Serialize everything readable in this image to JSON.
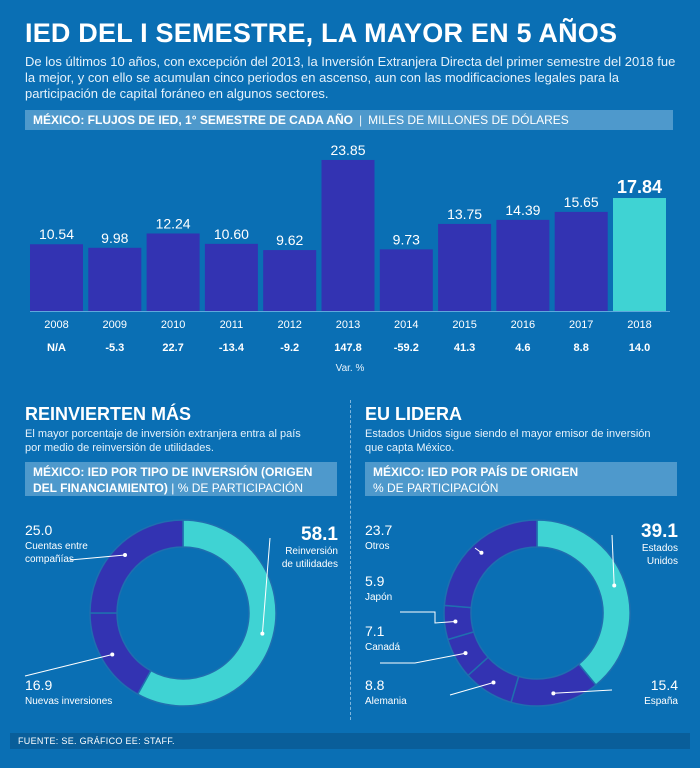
{
  "title": "IED DEL I SEMESTRE, LA MAYOR EN 5 AÑOS",
  "intro": "De los últimos 10 años, con excepción del 2013, la Inversión Extranjera Directa del primer semestre del 2018 fue la mejor, y con ello se acumulan cinco periodos en ascenso, aun con las modificaciones legales para la participación de capital foráneo en algunos sectores.",
  "bar_section": {
    "header_bold": "MÉXICO: FLUJOS DE IED, 1° SEMESTRE DE CADA AÑO",
    "separator": "|",
    "header_unit": "MILES DE MILLONES DE DÓLARES"
  },
  "left_section": {
    "title": "REINVIERTEN MÁS",
    "desc_lines": [
      "El mayor porcentaje de inversión extranjera entra al país",
      "por medio de reinversión de utilidades."
    ],
    "header_line1": "MÉXICO: IED POR TIPO DE INVERSIÓN (ORIGEN",
    "header_line2_bold": "DEL FINANCIAMIENTO)",
    "separator": "|",
    "header_line2_unit": "% DE PARTICIPACIÓN"
  },
  "right_section": {
    "title": "EU LIDERA",
    "desc_lines": [
      "Estados Unidos sigue siendo el mayor emisor de inversión",
      "que capta México."
    ],
    "header_line1": "MÉXICO: IED POR PAÍS DE ORIGEN",
    "header_line2_unit": "% DE PARTICIPACIÓN"
  },
  "footer": "FUENTE: SE. GRÁFICO EE: STAFF.",
  "colors": {
    "background": "#0a6fb4",
    "bar": "#3333b2",
    "bar_highlight": "#3fd3d3",
    "donut_light": "#3fd3d3",
    "donut_dark": "#3333b2",
    "header_strip": "#4e99cc"
  },
  "chart_data": [
    {
      "type": "bar",
      "title": "MÉXICO: FLUJOS DE IED, 1° SEMESTRE DE CADA AÑO",
      "ylabel": "MILES DE MILLONES DE DÓLARES",
      "categories": [
        "2008",
        "2009",
        "2010",
        "2011",
        "2012",
        "2013",
        "2014",
        "2015",
        "2016",
        "2017",
        "2018"
      ],
      "values": [
        10.54,
        9.98,
        12.24,
        10.6,
        9.62,
        23.85,
        9.73,
        13.75,
        14.39,
        15.65,
        17.84
      ],
      "value_labels": [
        "10.54",
        "9.98",
        "12.24",
        "10.60",
        "9.62",
        "23.85",
        "9.73",
        "13.75",
        "14.39",
        "15.65",
        "17.84"
      ],
      "var_labels": [
        "N/A",
        "-5.3",
        "22.7",
        "-13.4",
        "-9.2",
        "147.8",
        "-59.2",
        "41.3",
        "4.6",
        "8.8",
        "14.0"
      ],
      "var_caption": "Var. %",
      "highlight": "2018",
      "ylim": [
        0,
        24
      ]
    },
    {
      "type": "pie",
      "title": "MÉXICO: IED POR TIPO DE INVERSIÓN (ORIGEN DEL FINANCIAMIENTO)",
      "unit": "% DE PARTICIPACIÓN",
      "slices": [
        {
          "label": "Reinversión de utilidades",
          "value": 58.1,
          "value_label": "58.1",
          "lines": [
            "Reinversión",
            "de utilidades"
          ]
        },
        {
          "label": "Nuevas inversiones",
          "value": 16.9,
          "value_label": "16.9",
          "lines": [
            "Nuevas inversiones"
          ]
        },
        {
          "label": "Cuentas entre compañías",
          "value": 25.0,
          "value_label": "25.0",
          "lines": [
            "Cuentas entre",
            "compañías"
          ]
        }
      ]
    },
    {
      "type": "pie",
      "title": "MÉXICO: IED POR PAÍS DE ORIGEN",
      "unit": "% DE PARTICIPACIÓN",
      "slices": [
        {
          "label": "Estados Unidos",
          "value": 39.1,
          "value_label": "39.1",
          "lines": [
            "Estados",
            "Unidos"
          ]
        },
        {
          "label": "España",
          "value": 15.4,
          "value_label": "15.4",
          "lines": [
            "España"
          ]
        },
        {
          "label": "Alemania",
          "value": 8.8,
          "value_label": "8.8",
          "lines": [
            "Alemania"
          ]
        },
        {
          "label": "Canadá",
          "value": 7.1,
          "value_label": "7.1",
          "lines": [
            "Canadá"
          ]
        },
        {
          "label": "Japón",
          "value": 5.9,
          "value_label": "5.9",
          "lines": [
            "Japón"
          ]
        },
        {
          "label": "Otros",
          "value": 23.7,
          "value_label": "23.7",
          "lines": [
            "Otros"
          ]
        }
      ]
    }
  ]
}
